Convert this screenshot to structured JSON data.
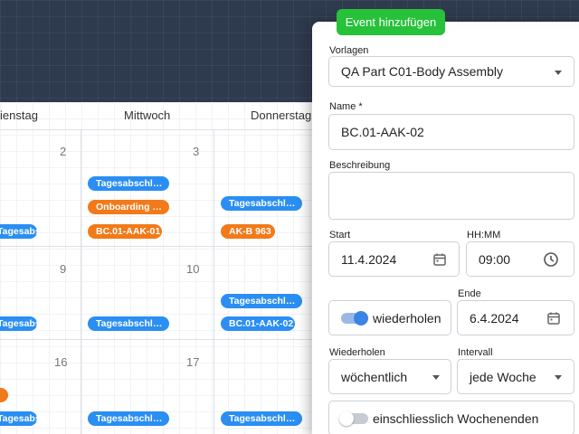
{
  "calendar": {
    "day_headers": [
      "ienstag",
      "Mittwoch",
      "Donnerstag"
    ],
    "day_numbers": [
      "2",
      "3",
      "9",
      "10",
      "16",
      "17"
    ],
    "events": {
      "w1_tue": "Tagesabschl…",
      "w1_wed_1": "Tagesabschl…",
      "w1_wed_2": "Onboarding …",
      "w1_wed_3": "BC.01-AAK-01",
      "w1_thu_1": "Tagesabschl…",
      "w1_thu_2": "AK-B 963",
      "w2_tue": "Tagesabschl…",
      "w2_wed": "Tagesabschl…",
      "w2_thu_1": "Tagesabschl…",
      "w2_thu_2": "BC.01-AAK-02",
      "w3_tue_1": "",
      "w3_tue_2": "Tagesabschl…",
      "w3_wed": "Tagesabschl…",
      "w3_thu": "Tagesabschl…"
    }
  },
  "form": {
    "add_event_button": "Event hinzufügen",
    "templates_label": "Vorlagen",
    "templates_value": "QA Part C01-Body Assembly",
    "name_label": "Name *",
    "name_value": "BC.01-AAK-02",
    "description_label": "Beschreibung",
    "description_value": "",
    "start_label": "Start",
    "start_value": "11.4.2024",
    "time_label": "HH:MM",
    "time_value": "09:00",
    "repeat_toggle_label": "wiederholen",
    "end_label": "Ende",
    "end_value": "6.4.2024",
    "repeat_label": "Wiederholen",
    "repeat_value": "wöchentlich",
    "interval_label": "Intervall",
    "interval_value": "jede Woche",
    "weekends_label": "einschliesslich Wochenenden"
  },
  "colors": {
    "accent_blue": "#2a8ef3",
    "accent_orange": "#f27a1a",
    "add_button_green": "#27c13a"
  }
}
